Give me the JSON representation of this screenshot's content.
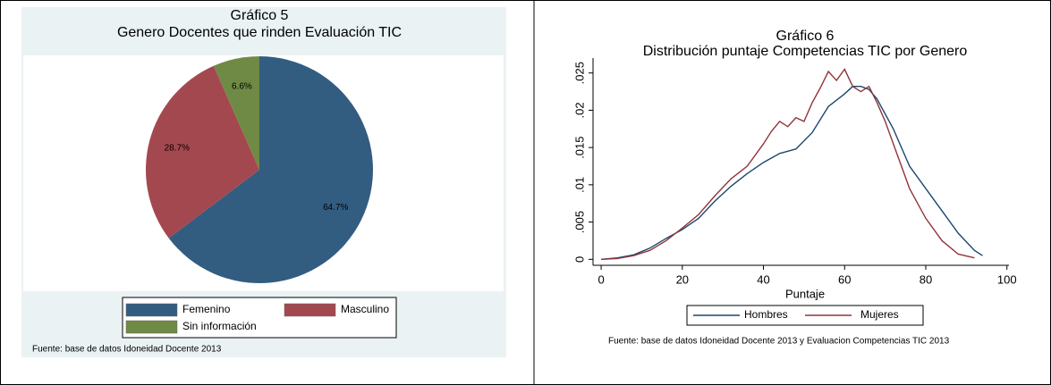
{
  "chart_data": [
    {
      "type": "pie",
      "title": "Gráfico 5",
      "subtitle": "Genero Docentes que rinden Evaluación TIC",
      "categories": [
        "Femenino",
        "Masculino",
        "Sin información"
      ],
      "values": [
        64.7,
        28.7,
        6.6
      ],
      "value_labels": [
        "64.7%",
        "28.7%",
        "6.6%"
      ],
      "colors": [
        "#335c81",
        "#a4484f",
        "#6f8a44"
      ],
      "note": "Fuente: base de datos Idoneidad Docente 2013"
    },
    {
      "type": "line",
      "title": "Gráfico 6",
      "subtitle": "Distribución puntaje Competencias TIC por Genero",
      "xlabel": "Puntaje",
      "xlim": [
        -2,
        100.5
      ],
      "xticks": [
        0,
        20,
        40,
        60,
        80,
        100
      ],
      "ylim": [
        -0.0008,
        0.027
      ],
      "yticks": [
        0,
        {
          "value": 0.005,
          "label": ".005"
        },
        {
          "value": 0.01,
          "label": ".01"
        },
        {
          "value": 0.015,
          "label": ".015"
        },
        {
          "value": 0.02,
          "label": ".02"
        },
        {
          "value": 0.025,
          "label": ".025"
        }
      ],
      "series": [
        {
          "name": "Hombres",
          "color": "#1a476f",
          "x": [
            0,
            4,
            8,
            12,
            16,
            20,
            24,
            28,
            32,
            36,
            40,
            44,
            48,
            52,
            56,
            60,
            62,
            64,
            66,
            68,
            72,
            76,
            80,
            84,
            88,
            92,
            94
          ],
          "values": [
            0,
            0.0002,
            0.0006,
            0.0015,
            0.0028,
            0.004,
            0.0055,
            0.0078,
            0.0098,
            0.0115,
            0.013,
            0.0142,
            0.0148,
            0.017,
            0.0205,
            0.0222,
            0.0232,
            0.0232,
            0.0228,
            0.0215,
            0.0175,
            0.0125,
            0.0095,
            0.0065,
            0.0035,
            0.0012,
            0.0005
          ]
        },
        {
          "name": "Mujeres",
          "color": "#90353b",
          "x": [
            0,
            4,
            8,
            12,
            16,
            20,
            24,
            28,
            32,
            36,
            40,
            42,
            44,
            46,
            48,
            50,
            52,
            54,
            56,
            58,
            60,
            62,
            64,
            66,
            68,
            70,
            72,
            76,
            80,
            84,
            88,
            92
          ],
          "values": [
            0,
            0.0001,
            0.0005,
            0.0012,
            0.0025,
            0.0042,
            0.006,
            0.0085,
            0.0108,
            0.0125,
            0.0155,
            0.0172,
            0.0185,
            0.0178,
            0.019,
            0.0185,
            0.021,
            0.023,
            0.0252,
            0.024,
            0.0255,
            0.0232,
            0.0225,
            0.0232,
            0.021,
            0.0185,
            0.0155,
            0.0095,
            0.0055,
            0.0025,
            0.0007,
            0.0002
          ]
        }
      ],
      "note": "Fuente: base de datos Idoneidad Docente 2013 y Evaluacion Competencias TIC 2013"
    }
  ]
}
